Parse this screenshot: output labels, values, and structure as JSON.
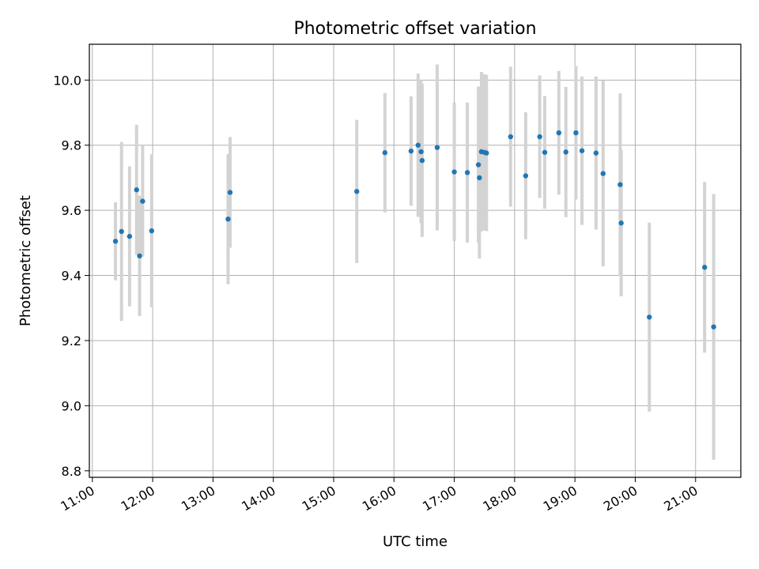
{
  "chart_data": {
    "type": "scatter",
    "title": "Photometric offset variation",
    "xlabel": "UTC time",
    "ylabel": "Photometric offset",
    "x_tick_labels": [
      "11:00",
      "12:00",
      "13:00",
      "14:00",
      "15:00",
      "16:00",
      "17:00",
      "18:00",
      "19:00",
      "20:00",
      "21:00"
    ],
    "y_tick_labels": [
      "8.8",
      "9.0",
      "9.2",
      "9.4",
      "9.6",
      "9.8",
      "10.0"
    ],
    "x_tick_hours": [
      11,
      12,
      13,
      14,
      15,
      16,
      17,
      18,
      19,
      20,
      21
    ],
    "y_ticks": [
      8.8,
      9.0,
      9.2,
      9.4,
      9.6,
      9.8,
      10.0
    ],
    "xlim": [
      "10:57",
      "21:45"
    ],
    "ylim": [
      8.78,
      10.11
    ],
    "grid": true,
    "colors": {
      "marker": "#1f77b4",
      "errorbar": "#d3d3d3",
      "grid": "#b0b0b0"
    },
    "series": [
      {
        "points": [
          {
            "x": "11:23",
            "y": 9.505,
            "err": 0.12
          },
          {
            "x": "11:29",
            "y": 9.535,
            "err": 0.275
          },
          {
            "x": "11:37",
            "y": 9.52,
            "err": 0.215
          },
          {
            "x": "11:44",
            "y": 9.663,
            "err": 0.2
          },
          {
            "x": "11:47",
            "y": 9.46,
            "err": 0.185
          },
          {
            "x": "11:50",
            "y": 9.628,
            "err": 0.17
          },
          {
            "x": "11:59",
            "y": 9.537,
            "err": 0.235
          },
          {
            "x": "13:15",
            "y": 9.573,
            "err": 0.2
          },
          {
            "x": "13:17",
            "y": 9.655,
            "err": 0.17
          },
          {
            "x": "15:23",
            "y": 9.658,
            "err": 0.22
          },
          {
            "x": "15:51",
            "y": 9.777,
            "err": 0.183
          },
          {
            "x": "16:17",
            "y": 9.782,
            "err": 0.168
          },
          {
            "x": "16:24",
            "y": 9.8,
            "err": 0.22
          },
          {
            "x": "16:27",
            "y": 9.78,
            "err": 0.22
          },
          {
            "x": "16:28",
            "y": 9.753,
            "err": 0.235
          },
          {
            "x": "16:43",
            "y": 9.793,
            "err": 0.255
          },
          {
            "x": "17:00",
            "y": 9.718,
            "err": 0.213
          },
          {
            "x": "17:13",
            "y": 9.716,
            "err": 0.215
          },
          {
            "x": "17:24",
            "y": 9.74,
            "err": 0.24
          },
          {
            "x": "17:25",
            "y": 9.7,
            "err": 0.248
          },
          {
            "x": "17:27",
            "y": 9.78,
            "err": 0.245
          },
          {
            "x": "17:30",
            "y": 9.778,
            "err": 0.24
          },
          {
            "x": "17:32",
            "y": 9.776,
            "err": 0.24
          },
          {
            "x": "17:56",
            "y": 9.826,
            "err": 0.215
          },
          {
            "x": "18:11",
            "y": 9.706,
            "err": 0.195
          },
          {
            "x": "18:25",
            "y": 9.826,
            "err": 0.188
          },
          {
            "x": "18:30",
            "y": 9.778,
            "err": 0.173
          },
          {
            "x": "18:44",
            "y": 9.838,
            "err": 0.19
          },
          {
            "x": "18:51",
            "y": 9.779,
            "err": 0.2
          },
          {
            "x": "19:01",
            "y": 9.838,
            "err": 0.205
          },
          {
            "x": "19:07",
            "y": 9.783,
            "err": 0.228
          },
          {
            "x": "19:21",
            "y": 9.776,
            "err": 0.235
          },
          {
            "x": "19:28",
            "y": 9.713,
            "err": 0.285
          },
          {
            "x": "19:45",
            "y": 9.679,
            "err": 0.28
          },
          {
            "x": "19:46",
            "y": 9.561,
            "err": 0.225
          },
          {
            "x": "20:14",
            "y": 9.272,
            "err": 0.29
          },
          {
            "x": "21:09",
            "y": 9.425,
            "err": 0.262
          },
          {
            "x": "21:18",
            "y": 9.242,
            "err": 0.408
          }
        ]
      }
    ]
  }
}
